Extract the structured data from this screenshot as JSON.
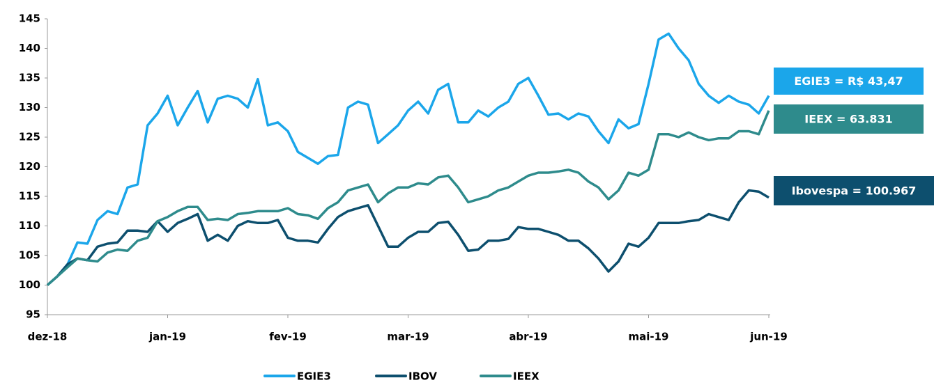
{
  "chart_data": {
    "type": "line",
    "categories": [
      "dez-18",
      null,
      null,
      null,
      null,
      null,
      null,
      null,
      null,
      null,
      null,
      null,
      "jan-19",
      null,
      null,
      null,
      null,
      null,
      null,
      null,
      null,
      null,
      null,
      null,
      "fev-19",
      null,
      null,
      null,
      null,
      null,
      null,
      null,
      null,
      null,
      null,
      null,
      "mar-19",
      null,
      null,
      null,
      null,
      null,
      null,
      null,
      null,
      null,
      null,
      null,
      "abr-19",
      null,
      null,
      null,
      null,
      null,
      null,
      null,
      null,
      null,
      null,
      null,
      "mai-19",
      null,
      null,
      null,
      null,
      null,
      null,
      null,
      null,
      null,
      null,
      null,
      "jun-19"
    ],
    "series": [
      {
        "name": "EGIE3",
        "color": "#1ba6ea",
        "values": [
          100,
          101.5,
          103.5,
          107.2,
          107,
          111,
          112.5,
          112,
          116.5,
          117,
          127,
          129,
          132,
          127,
          130,
          132.8,
          127.5,
          131.5,
          132,
          131.5,
          130,
          134.8,
          127,
          127.5,
          126,
          122.5,
          121.5,
          120.5,
          121.8,
          122,
          130,
          131,
          130.5,
          124,
          125.5,
          127,
          129.5,
          131,
          129,
          133,
          134,
          127.5,
          127.5,
          129.5,
          128.5,
          130,
          131,
          134,
          135,
          132,
          128.8,
          129,
          128,
          129,
          128.5,
          126,
          124,
          128,
          126.5,
          127.2,
          134,
          141.5,
          142.5,
          140,
          138,
          134,
          132,
          130.8,
          132,
          131,
          130.5,
          129,
          132
        ]
      },
      {
        "name": "IBOV",
        "color": "#0d4f6e",
        "values": [
          100,
          101.5,
          103.5,
          104.5,
          104.2,
          106.5,
          107,
          107.2,
          109.2,
          109.2,
          109,
          110.8,
          109,
          110.5,
          111.2,
          112,
          107.5,
          108.5,
          107.5,
          110,
          110.8,
          110.5,
          110.5,
          111,
          108,
          107.5,
          107.5,
          107.2,
          109.5,
          111.5,
          112.5,
          113,
          113.5,
          110,
          106.5,
          106.5,
          108,
          109,
          109,
          110.5,
          110.7,
          108.5,
          105.8,
          106,
          107.5,
          107.5,
          107.8,
          109.8,
          109.5,
          109.5,
          109,
          108.5,
          107.5,
          107.5,
          106.2,
          104.5,
          102.3,
          104,
          107,
          106.5,
          108,
          110.5,
          110.5,
          110.5,
          110.8,
          111,
          112,
          111.5,
          111,
          114,
          116,
          115.8,
          114.8
        ]
      },
      {
        "name": "IEEX",
        "color": "#2e8b8c",
        "values": [
          100,
          101.5,
          103,
          104.5,
          104.2,
          104,
          105.5,
          106,
          105.8,
          107.5,
          108,
          110.8,
          111.5,
          112.5,
          113.2,
          113.2,
          111,
          111.2,
          111,
          112,
          112.2,
          112.5,
          112.5,
          112.5,
          113,
          112,
          111.8,
          111.2,
          113,
          114,
          116,
          116.5,
          117,
          114,
          115.5,
          116.5,
          116.5,
          117.2,
          117,
          118.2,
          118.5,
          116.5,
          114,
          114.5,
          115,
          116,
          116.5,
          117.5,
          118.5,
          119,
          119,
          119.2,
          119.5,
          119,
          117.5,
          116.5,
          114.5,
          116,
          119,
          118.5,
          119.5,
          125.5,
          125.5,
          125,
          125.8,
          125,
          124.5,
          124.8,
          124.8,
          126,
          126,
          125.5,
          129.5
        ]
      }
    ],
    "ylim": [
      95,
      145
    ],
    "yticks": [
      95,
      100,
      105,
      110,
      115,
      120,
      125,
      130,
      135,
      140,
      145
    ],
    "legend": "bottom",
    "annotations": [
      {
        "text": "EGIE3 = R$ 43,47",
        "color": "#1ba6ea"
      },
      {
        "text": "IEEX = 63.831",
        "color": "#2e8b8c"
      },
      {
        "text": "Ibovespa = 100.967",
        "color": "#0d4f6e"
      }
    ]
  }
}
